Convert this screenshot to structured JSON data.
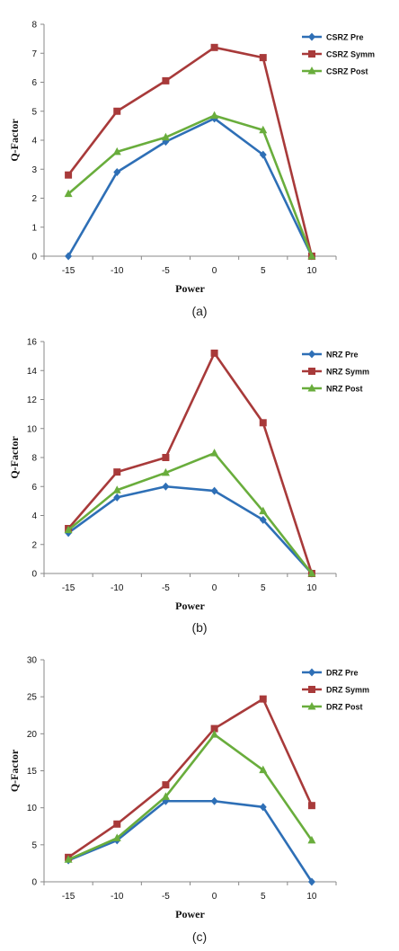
{
  "chart_data": [
    {
      "type": "line",
      "caption": "(a)",
      "xlabel": "Power",
      "ylabel": "Q-Factor",
      "categories": [
        "-15",
        "-10",
        "-5",
        "0",
        "5",
        "10"
      ],
      "ylim": [
        0,
        8
      ],
      "yticks": [
        0,
        1,
        2,
        3,
        4,
        5,
        6,
        7,
        8
      ],
      "legend_position": "top-right",
      "series": [
        {
          "name": "CSRZ Pre",
          "color": "#2e6fb6",
          "marker": "diamond",
          "values": [
            0.0,
            2.9,
            3.95,
            4.75,
            3.5,
            0.0
          ]
        },
        {
          "name": "CSRZ Symm",
          "color": "#a83a3a",
          "marker": "square",
          "values": [
            2.8,
            5.0,
            6.05,
            7.2,
            6.85,
            0.0
          ]
        },
        {
          "name": "CSRZ Post",
          "color": "#69ad3c",
          "marker": "triangle",
          "values": [
            2.15,
            3.6,
            4.1,
            4.85,
            4.35,
            0.0
          ]
        }
      ]
    },
    {
      "type": "line",
      "caption": "(b)",
      "xlabel": "Power",
      "ylabel": "Q-Factor",
      "categories": [
        "-15",
        "-10",
        "-5",
        "0",
        "5",
        "10"
      ],
      "ylim": [
        0,
        16
      ],
      "yticks": [
        0,
        2,
        4,
        6,
        8,
        10,
        12,
        14,
        16
      ],
      "legend_position": "top-right",
      "series": [
        {
          "name": "NRZ Pre",
          "color": "#2e6fb6",
          "marker": "diamond",
          "values": [
            2.8,
            5.25,
            6.0,
            5.7,
            3.7,
            0.0
          ]
        },
        {
          "name": "NRZ Symm",
          "color": "#a83a3a",
          "marker": "square",
          "values": [
            3.1,
            7.0,
            8.0,
            15.2,
            10.4,
            0.0
          ]
        },
        {
          "name": "NRZ Post",
          "color": "#69ad3c",
          "marker": "triangle",
          "values": [
            3.0,
            5.75,
            6.95,
            8.3,
            4.3,
            0.0
          ]
        }
      ]
    },
    {
      "type": "line",
      "caption": "(c)",
      "xlabel": "Power",
      "ylabel": "Q-Factor",
      "categories": [
        "-15",
        "-10",
        "-5",
        "0",
        "5",
        "10"
      ],
      "ylim": [
        0,
        30
      ],
      "yticks": [
        0,
        5,
        10,
        15,
        20,
        25,
        30
      ],
      "legend_position": "top-right",
      "series": [
        {
          "name": "DRZ Pre",
          "color": "#2e6fb6",
          "marker": "diamond",
          "values": [
            2.9,
            5.6,
            10.9,
            10.9,
            10.1,
            0.0
          ]
        },
        {
          "name": "DRZ Symm",
          "color": "#a83a3a",
          "marker": "square",
          "values": [
            3.3,
            7.8,
            13.1,
            20.7,
            24.7,
            10.3
          ]
        },
        {
          "name": "DRZ Post",
          "color": "#69ad3c",
          "marker": "triangle",
          "values": [
            3.0,
            5.9,
            11.5,
            19.9,
            15.1,
            5.6
          ]
        }
      ]
    }
  ]
}
